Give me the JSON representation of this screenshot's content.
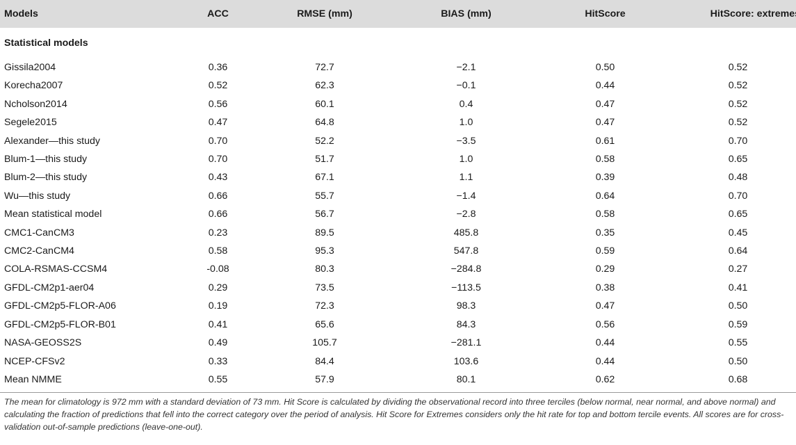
{
  "table": {
    "headers": [
      "Models",
      "ACC",
      "RMSE (mm)",
      "BIAS (mm)",
      "HitScore",
      "HitScore: extremes"
    ],
    "section_label": "Statistical models",
    "rows": [
      [
        "Gissila2004",
        "0.36",
        "72.7",
        "−2.1",
        "0.50",
        "0.52"
      ],
      [
        "Korecha2007",
        "0.52",
        "62.3",
        "−0.1",
        "0.44",
        "0.52"
      ],
      [
        "Ncholson2014",
        "0.56",
        "60.1",
        "0.4",
        "0.47",
        "0.52"
      ],
      [
        "Segele2015",
        "0.47",
        "64.8",
        "1.0",
        "0.47",
        "0.52"
      ],
      [
        "Alexander—this study",
        "0.70",
        "52.2",
        "−3.5",
        "0.61",
        "0.70"
      ],
      [
        "Blum-1—this study",
        "0.70",
        "51.7",
        "1.0",
        "0.58",
        "0.65"
      ],
      [
        "Blum-2—this study",
        "0.43",
        "67.1",
        "1.1",
        "0.39",
        "0.48"
      ],
      [
        "Wu—this study",
        "0.66",
        "55.7",
        "−1.4",
        "0.64",
        "0.70"
      ],
      [
        "Mean statistical model",
        "0.66",
        "56.7",
        "−2.8",
        "0.58",
        "0.65"
      ],
      [
        "CMC1-CanCM3",
        "0.23",
        "89.5",
        "485.8",
        "0.35",
        "0.45"
      ],
      [
        "CMC2-CanCM4",
        "0.58",
        "95.3",
        "547.8",
        "0.59",
        "0.64"
      ],
      [
        "COLA-RSMAS-CCSM4",
        "-0.08",
        "80.3",
        "−284.8",
        "0.29",
        "0.27"
      ],
      [
        "GFDL-CM2p1-aer04",
        "0.29",
        "73.5",
        "−113.5",
        "0.38",
        "0.41"
      ],
      [
        "GFDL-CM2p5-FLOR-A06",
        "0.19",
        "72.3",
        "98.3",
        "0.47",
        "0.50"
      ],
      [
        "GFDL-CM2p5-FLOR-B01",
        "0.41",
        "65.6",
        "84.3",
        "0.56",
        "0.59"
      ],
      [
        "NASA-GEOSS2S",
        "0.49",
        "105.7",
        "−281.1",
        "0.44",
        "0.55"
      ],
      [
        "NCEP-CFSv2",
        "0.33",
        "84.4",
        "103.6",
        "0.44",
        "0.50"
      ],
      [
        "Mean NMME",
        "0.55",
        "57.9",
        "80.1",
        "0.62",
        "0.68"
      ]
    ]
  },
  "footnote": "The mean for climatology is 972 mm with a standard deviation of 73 mm. Hit Score is calculated by dividing the observational record into three terciles (below normal, near normal, and above normal) and calculating the fraction of predictions that fell into the correct category over the period of analysis. Hit Score for Extremes considers only the hit rate for top and bottom tercile events. All scores are for cross-validation out-of-sample predictions (leave-one-out)."
}
